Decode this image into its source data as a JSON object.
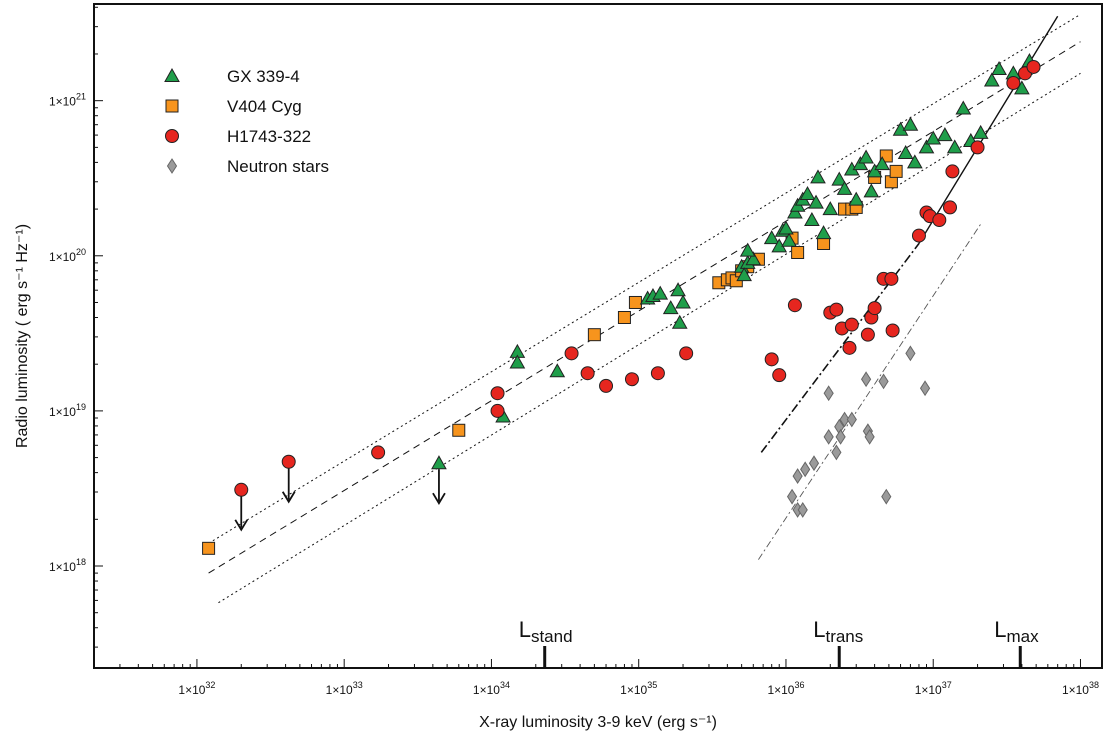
{
  "chart_data": {
    "type": "scatter",
    "xlabel": "X-ray luminosity 3-9 keV (erg s⁻¹)",
    "ylabel": "Radio luminosity  ( erg s⁻¹ Hz⁻¹)",
    "x_scale": "log",
    "y_scale": "log",
    "xlim": [
      2e+31,
      1.4e+38
    ],
    "ylim": [
      2.2e+17,
      4.2e+21
    ],
    "grid": false,
    "legend_position": "top-left",
    "x_ticks": [
      {
        "value": 1e+32,
        "label": "1×10",
        "exp": "32"
      },
      {
        "value": 1e+33,
        "label": "1×10",
        "exp": "33"
      },
      {
        "value": 1e+34,
        "label": "1×10",
        "exp": "34"
      },
      {
        "value": 1e+35,
        "label": "1×10",
        "exp": "35"
      },
      {
        "value": 1e+36,
        "label": "1×10",
        "exp": "36"
      },
      {
        "value": 1e+37,
        "label": "1×10",
        "exp": "37"
      },
      {
        "value": 1e+38,
        "label": "1×10",
        "exp": "38"
      }
    ],
    "y_ticks": [
      {
        "value": 1e+18,
        "label": "1×10",
        "exp": "18"
      },
      {
        "value": 1e+19,
        "label": "1×10",
        "exp": "19"
      },
      {
        "value": 1e+20,
        "label": "1×10",
        "exp": "20"
      },
      {
        "value": 1e+21,
        "label": "1×10",
        "exp": "21"
      }
    ],
    "series": [
      {
        "name": "GX 339-4",
        "marker": "triangle",
        "color": "#1f9e4a",
        "points": [
          [
            1.5e+34,
            2.4e+19
          ],
          [
            1.5e+34,
            2.05e+19
          ],
          [
            1.2e+34,
            9.2e+18
          ],
          [
            2.8e+34,
            1.8e+19
          ],
          [
            1.15e+35,
            5.3e+19
          ],
          [
            1.25e+35,
            5.5e+19
          ],
          [
            1.4e+35,
            5.7e+19
          ],
          [
            1.65e+35,
            4.6e+19
          ],
          [
            1.9e+35,
            3.7e+19
          ],
          [
            1.85e+35,
            6e+19
          ],
          [
            2e+35,
            5e+19
          ],
          [
            5e+35,
            8.5e+19
          ],
          [
            5.5e+35,
            9e+19
          ],
          [
            6e+35,
            9.5e+19
          ],
          [
            5.5e+35,
            1.08e+20
          ],
          [
            5.2e+35,
            7.5e+19
          ],
          [
            8e+35,
            1.3e+20
          ],
          [
            9e+35,
            1.15e+20
          ],
          [
            9.5e+35,
            1.45e+20
          ],
          [
            1e+36,
            1.5e+20
          ],
          [
            1.05e+36,
            1.25e+20
          ],
          [
            1.15e+36,
            1.9e+20
          ],
          [
            1.2e+36,
            2.1e+20
          ],
          [
            1.3e+36,
            2.3e+20
          ],
          [
            1.4e+36,
            2.5e+20
          ],
          [
            1.5e+36,
            1.7e+20
          ],
          [
            1.6e+36,
            2.2e+20
          ],
          [
            1.65e+36,
            3.2e+20
          ],
          [
            1.8e+36,
            1.4e+20
          ],
          [
            2e+36,
            2e+20
          ],
          [
            2.3e+36,
            3.1e+20
          ],
          [
            2.5e+36,
            2.7e+20
          ],
          [
            2.8e+36,
            3.6e+20
          ],
          [
            3e+36,
            2.3e+20
          ],
          [
            3.2e+36,
            3.9e+20
          ],
          [
            3.5e+36,
            4.3e+20
          ],
          [
            3.8e+36,
            2.6e+20
          ],
          [
            4e+36,
            3.5e+20
          ],
          [
            4.5e+36,
            3.9e+20
          ],
          [
            6e+36,
            6.5e+20
          ],
          [
            6.5e+36,
            4.6e+20
          ],
          [
            7e+36,
            7e+20
          ],
          [
            7.5e+36,
            4e+20
          ],
          [
            9e+36,
            5e+20
          ],
          [
            1e+37,
            5.7e+20
          ],
          [
            1.2e+37,
            6e+20
          ],
          [
            1.4e+37,
            5e+20
          ],
          [
            1.6e+37,
            8.9e+20
          ],
          [
            1.8e+37,
            5.5e+20
          ],
          [
            2.1e+37,
            6.2e+20
          ],
          [
            2.5e+37,
            1.35e+21
          ],
          [
            2.8e+37,
            1.6e+21
          ],
          [
            3.5e+37,
            1.5e+21
          ],
          [
            4e+37,
            1.2e+21
          ],
          [
            4.2e+37,
            1.6e+21
          ],
          [
            4.5e+37,
            1.8e+21
          ]
        ]
      },
      {
        "name": "V404 Cyg",
        "marker": "square",
        "color": "#f7941d",
        "points": [
          [
            1.2e+32,
            1.3e+18
          ],
          [
            6e+33,
            7.5e+18
          ],
          [
            5e+34,
            3.1e+19
          ],
          [
            8e+34,
            4e+19
          ],
          [
            9.5e+34,
            5e+19
          ],
          [
            3.5e+35,
            6.7e+19
          ],
          [
            4e+35,
            7e+19
          ],
          [
            4.3e+35,
            7.2e+19
          ],
          [
            4.6e+35,
            6.9e+19
          ],
          [
            5e+35,
            8e+19
          ],
          [
            5.5e+35,
            8.5e+19
          ],
          [
            6.5e+35,
            9.5e+19
          ],
          [
            1.1e+36,
            1.3e+20
          ],
          [
            1.2e+36,
            1.05e+20
          ],
          [
            1.8e+36,
            1.2e+20
          ],
          [
            2.5e+36,
            2e+20
          ],
          [
            2.8e+36,
            2e+20
          ],
          [
            3e+36,
            2.05e+20
          ],
          [
            4e+36,
            3.2e+20
          ],
          [
            4.8e+36,
            4.4e+20
          ],
          [
            5.2e+36,
            3e+20
          ],
          [
            5.6e+36,
            3.5e+20
          ]
        ]
      },
      {
        "name": "H1743-322",
        "marker": "circle",
        "color": "#e6261f",
        "points": [
          [
            1.7e+33,
            5.4e+18
          ],
          [
            1.1e+34,
            1.3e+19
          ],
          [
            1.1e+34,
            1e+19
          ],
          [
            3.5e+34,
            2.35e+19
          ],
          [
            4.5e+34,
            1.75e+19
          ],
          [
            6e+34,
            1.45e+19
          ],
          [
            9e+34,
            1.6e+19
          ],
          [
            1.35e+35,
            1.75e+19
          ],
          [
            2.1e+35,
            2.35e+19
          ],
          [
            8e+35,
            2.15e+19
          ],
          [
            9e+35,
            1.7e+19
          ],
          [
            1.15e+36,
            4.8e+19
          ],
          [
            2e+36,
            4.3e+19
          ],
          [
            2.2e+36,
            4.5e+19
          ],
          [
            2.4e+36,
            3.4e+19
          ],
          [
            2.7e+36,
            2.55e+19
          ],
          [
            2.8e+36,
            3.6e+19
          ],
          [
            3.6e+36,
            3.1e+19
          ],
          [
            3.8e+36,
            4e+19
          ],
          [
            4e+36,
            4.6e+19
          ],
          [
            4.6e+36,
            7.1e+19
          ],
          [
            5.2e+36,
            7.1e+19
          ],
          [
            5.3e+36,
            3.3e+19
          ],
          [
            8e+36,
            1.35e+20
          ],
          [
            9e+36,
            1.9e+20
          ],
          [
            9.5e+36,
            1.8e+20
          ],
          [
            1.1e+37,
            1.7e+20
          ],
          [
            1.3e+37,
            2.05e+20
          ],
          [
            1.35e+37,
            3.5e+20
          ],
          [
            2e+37,
            5e+20
          ],
          [
            3.5e+37,
            1.3e+21
          ],
          [
            4.2e+37,
            1.5e+21
          ],
          [
            4.8e+37,
            1.65e+21
          ]
        ]
      },
      {
        "name": "Neutron stars",
        "marker": "diamond",
        "color": "#9a9a9a",
        "points": [
          [
            1.1e+36,
            2.8e+18
          ],
          [
            1.2e+36,
            2.3e+18
          ],
          [
            1.3e+36,
            2.3e+18
          ],
          [
            1.2e+36,
            3.8e+18
          ],
          [
            1.35e+36,
            4.2e+18
          ],
          [
            1.55e+36,
            4.6e+18
          ],
          [
            1.95e+36,
            6.8e+18
          ],
          [
            1.95e+36,
            1.3e+19
          ],
          [
            2.2e+36,
            5.4e+18
          ],
          [
            2.3e+36,
            7.9e+18
          ],
          [
            2.35e+36,
            6.8e+18
          ],
          [
            2.5e+36,
            8.8e+18
          ],
          [
            2.8e+36,
            8.8e+18
          ],
          [
            3.5e+36,
            1.6e+19
          ],
          [
            3.6e+36,
            7.4e+18
          ],
          [
            3.7e+36,
            6.8e+18
          ],
          [
            4.6e+36,
            1.55e+19
          ],
          [
            4.8e+36,
            2.8e+18
          ],
          [
            7e+36,
            2.35e+19
          ],
          [
            8.8e+36,
            1.4e+19
          ]
        ]
      }
    ],
    "upper_limits": [
      {
        "x": 2e+32,
        "y": 3.1e+18,
        "marker": "circle",
        "color": "#e6261f"
      },
      {
        "x": 4.2e+32,
        "y": 4.7e+18,
        "marker": "circle",
        "color": "#e6261f"
      },
      {
        "x": 4.4e+33,
        "y": 4.6e+18,
        "marker": "triangle",
        "color": "#1f9e4a"
      }
    ],
    "lines": [
      {
        "style": "dashed",
        "from": [
          1.2e+32,
          9e+17
        ],
        "to": [
          1e+38,
          2.4e+21
        ]
      },
      {
        "style": "dotted",
        "from": [
          1.2e+32,
          1.4e+18
        ],
        "to": [
          1e+38,
          3.6e+21
        ]
      },
      {
        "style": "dotted",
        "from": [
          1.4e+32,
          5.8e+17
        ],
        "to": [
          1e+38,
          1.5e+21
        ]
      },
      {
        "style": "solid",
        "from": [
          8e+36,
          1.2e+20
        ],
        "to": [
          7e+37,
          3.5e+21
        ]
      },
      {
        "style": "dashdot",
        "from": [
          6.8e+35,
          5.4e+18
        ],
        "to": [
          8e+36,
          1.2e+20
        ]
      },
      {
        "style": "dashdot-thin",
        "from": [
          6.5e+35,
          1.1e+18
        ],
        "to": [
          2.1e+37,
          1.6e+20
        ]
      }
    ],
    "markers": [
      {
        "label": "L",
        "sub": "stand",
        "x": 2.3e+34
      },
      {
        "label": "L",
        "sub": "trans",
        "x": 2.3e+36
      },
      {
        "label": "L",
        "sub": "max",
        "x": 3.9e+37
      }
    ]
  }
}
